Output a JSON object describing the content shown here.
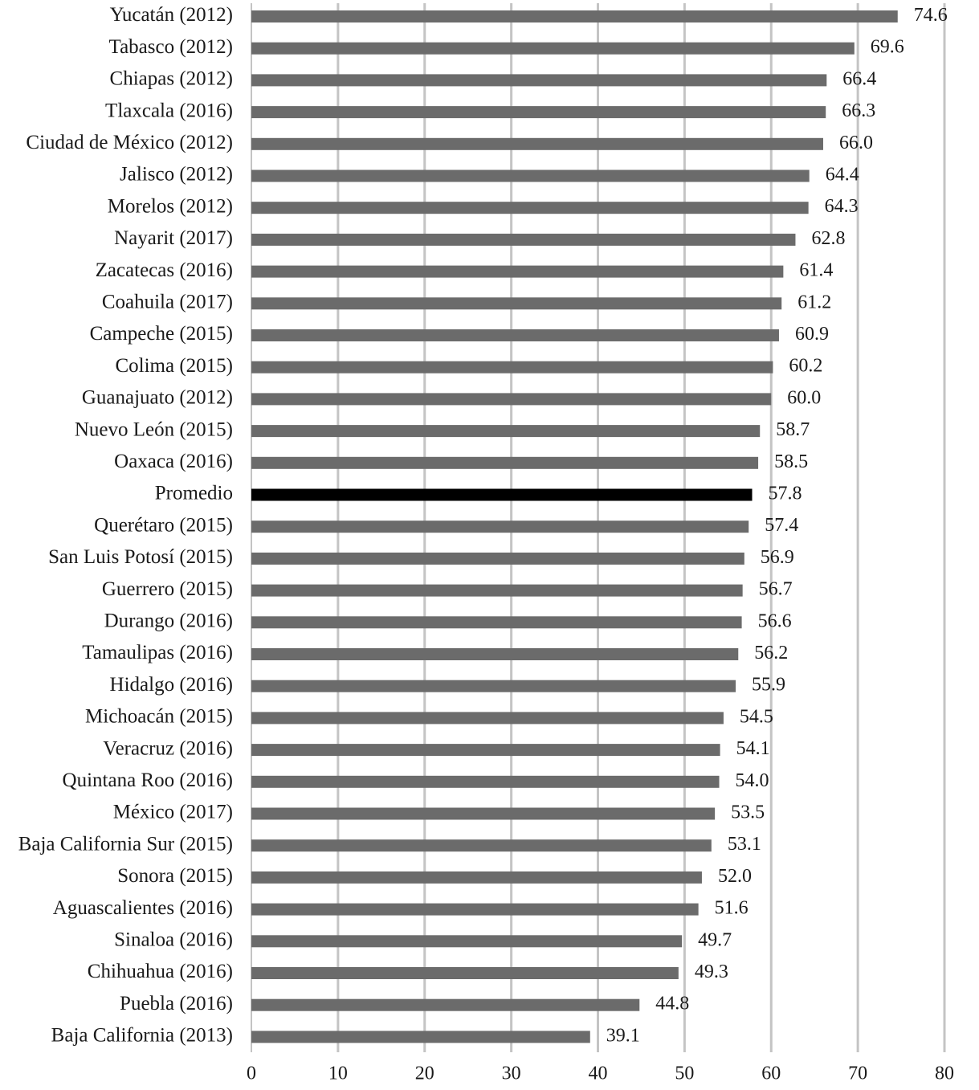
{
  "chart_data": {
    "type": "bar",
    "orientation": "horizontal",
    "categories": [
      "Yucatán (2012)",
      "Tabasco (2012)",
      "Chiapas (2012)",
      "Tlaxcala (2016)",
      "Ciudad de México (2012)",
      "Jalisco (2012)",
      "Morelos (2012)",
      "Nayarit (2017)",
      "Zacatecas (2016)",
      "Coahuila (2017)",
      "Campeche (2015)",
      "Colima (2015)",
      "Guanajuato (2012)",
      "Nuevo León (2015)",
      "Oaxaca (2016)",
      "Promedio",
      "Querétaro (2015)",
      "San Luis Potosí (2015)",
      "Guerrero (2015)",
      "Durango (2016)",
      "Tamaulipas (2016)",
      "Hidalgo (2016)",
      "Michoacán (2015)",
      "Veracruz (2016)",
      "Quintana Roo (2016)",
      "México (2017)",
      "Baja California Sur (2015)",
      "Sonora (2015)",
      "Aguascalientes (2016)",
      "Sinaloa (2016)",
      "Chihuahua (2016)",
      "Puebla (2016)",
      "Baja California (2013)"
    ],
    "values": [
      74.6,
      69.6,
      66.4,
      66.3,
      66.0,
      64.4,
      64.3,
      62.8,
      61.4,
      61.2,
      60.9,
      60.2,
      60.0,
      58.7,
      58.5,
      57.8,
      57.4,
      56.9,
      56.7,
      56.6,
      56.2,
      55.9,
      54.5,
      54.1,
      54.0,
      53.5,
      53.1,
      52.0,
      51.6,
      49.7,
      49.3,
      44.8,
      39.1
    ],
    "value_labels": [
      "74.6",
      "69.6",
      "66.4",
      "66.3",
      "66.0",
      "64.4",
      "64.3",
      "62.8",
      "61.4",
      "61.2",
      "60.9",
      "60.2",
      "60.0",
      "58.7",
      "58.5",
      "57.8",
      "57.4",
      "56.9",
      "56.7",
      "56.6",
      "56.2",
      "55.9",
      "54.5",
      "54.1",
      "54.0",
      "53.5",
      "53.1",
      "52.0",
      "51.6",
      "49.7",
      "49.3",
      "44.8",
      "39.1"
    ],
    "highlight": "Promedio",
    "xlim": [
      0,
      80
    ],
    "xticks": [
      0,
      10,
      20,
      30,
      40,
      50,
      60,
      70,
      80
    ],
    "grid": true,
    "title": "",
    "xlabel": "",
    "ylabel": "",
    "colors": {
      "bar": "#6b6b6b",
      "highlight": "#000000",
      "grid": "#c4c4c4",
      "axis": "#c4c4c4"
    }
  }
}
